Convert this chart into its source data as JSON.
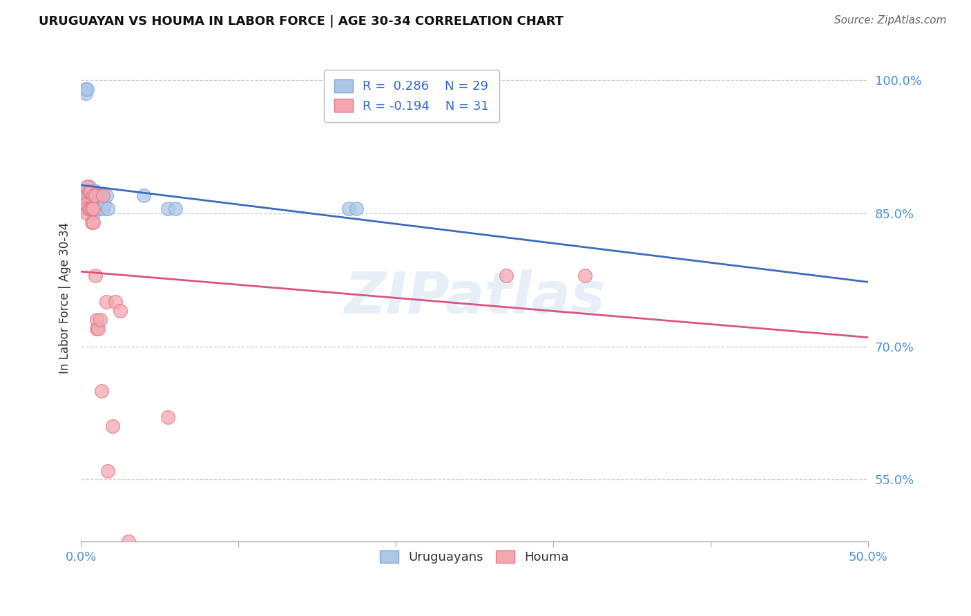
{
  "title": "URUGUAYAN VS HOUMA IN LABOR FORCE | AGE 30-34 CORRELATION CHART",
  "source": "Source: ZipAtlas.com",
  "ylabel": "In Labor Force | Age 30-34",
  "xlim": [
    0.0,
    0.5
  ],
  "ylim": [
    0.48,
    1.03
  ],
  "xtick_positions": [
    0.0,
    0.1,
    0.2,
    0.3,
    0.4,
    0.5
  ],
  "xtick_labels_show": [
    "0.0%",
    "",
    "",
    "",
    "",
    "50.0%"
  ],
  "ytick_values": [
    1.0,
    0.85,
    0.7,
    0.55
  ],
  "ytick_labels": [
    "100.0%",
    "85.0%",
    "70.0%",
    "55.0%"
  ],
  "grid_color": "#cccccc",
  "background_color": "#ffffff",
  "uruguayan_color": "#aec6e8",
  "uruguayan_edge": "#7aaad4",
  "houma_color": "#f4a7b0",
  "houma_edge": "#e07888",
  "uruguayan_line_color": "#3a6bbf",
  "houma_line_color": "#d9547e",
  "R_uruguayan": 0.286,
  "N_uruguayan": 29,
  "R_houma": -0.194,
  "N_houma": 31,
  "legend_label_uruguayan": "Uruguayans",
  "legend_label_houma": "Houma",
  "uruguayan_x": [
    0.003,
    0.003,
    0.004,
    0.004,
    0.005,
    0.005,
    0.006,
    0.006,
    0.007,
    0.007,
    0.008,
    0.008,
    0.008,
    0.009,
    0.009,
    0.01,
    0.01,
    0.011,
    0.012,
    0.013,
    0.014,
    0.015,
    0.016,
    0.017,
    0.04,
    0.055,
    0.06,
    0.17,
    0.175
  ],
  "uruguayan_y": [
    0.99,
    0.985,
    0.99,
    0.87,
    0.88,
    0.87,
    0.87,
    0.86,
    0.87,
    0.855,
    0.87,
    0.865,
    0.85,
    0.875,
    0.86,
    0.87,
    0.86,
    0.855,
    0.87,
    0.87,
    0.855,
    0.86,
    0.87,
    0.855,
    0.87,
    0.855,
    0.855,
    0.855,
    0.855
  ],
  "houma_x": [
    0.003,
    0.003,
    0.003,
    0.004,
    0.004,
    0.005,
    0.005,
    0.006,
    0.006,
    0.007,
    0.007,
    0.008,
    0.008,
    0.008,
    0.009,
    0.009,
    0.01,
    0.01,
    0.011,
    0.012,
    0.013,
    0.014,
    0.016,
    0.017,
    0.02,
    0.022,
    0.025,
    0.03,
    0.055,
    0.27,
    0.32
  ],
  "houma_y": [
    0.87,
    0.86,
    0.855,
    0.88,
    0.85,
    0.875,
    0.855,
    0.875,
    0.855,
    0.855,
    0.84,
    0.87,
    0.855,
    0.84,
    0.78,
    0.87,
    0.72,
    0.73,
    0.72,
    0.73,
    0.65,
    0.87,
    0.75,
    0.56,
    0.61,
    0.75,
    0.74,
    0.48,
    0.62,
    0.78,
    0.78
  ]
}
